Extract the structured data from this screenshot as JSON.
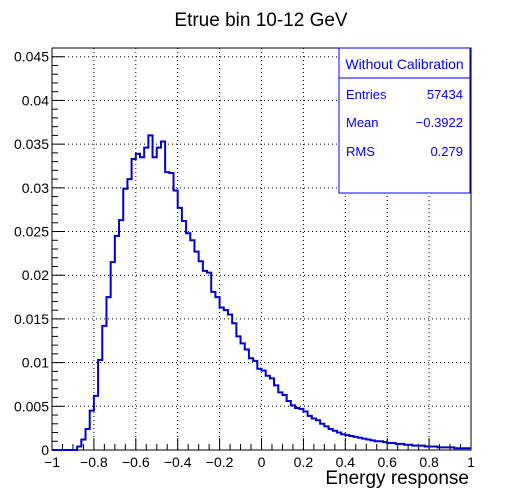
{
  "chart_data": {
    "type": "histogram",
    "title": "Etrue bin 10-12 GeV",
    "xlabel": "Energy response",
    "ylabel": "",
    "xlim": [
      -1,
      1
    ],
    "ylim": [
      0,
      0.046
    ],
    "x_ticks": [
      "−1",
      "−0.8",
      "−0.6",
      "−0.4",
      "−0.2",
      "0",
      "0.2",
      "0.4",
      "0.6",
      "0.8",
      "1"
    ],
    "x_tick_values": [
      -1,
      -0.8,
      -0.6,
      -0.4,
      -0.2,
      0,
      0.2,
      0.4,
      0.6,
      0.8,
      1
    ],
    "y_ticks": [
      "0",
      "0.005",
      "0.01",
      "0.015",
      "0.02",
      "0.025",
      "0.03",
      "0.035",
      "0.04",
      "0.045"
    ],
    "y_tick_values": [
      0,
      0.005,
      0.01,
      0.015,
      0.02,
      0.025,
      0.03,
      0.035,
      0.04,
      0.045
    ],
    "grid": true,
    "bin_start": -1,
    "bin_width": 0.02,
    "values": [
      0,
      0,
      0,
      0,
      0,
      0,
      0.0004,
      0.0012,
      0.0024,
      0.0045,
      0.0062,
      0.0103,
      0.0142,
      0.0175,
      0.0215,
      0.0245,
      0.0263,
      0.0299,
      0.031,
      0.0333,
      0.0339,
      0.0335,
      0.0346,
      0.036,
      0.0335,
      0.0346,
      0.0353,
      0.0318,
      0.0317,
      0.0297,
      0.0277,
      0.0262,
      0.0248,
      0.024,
      0.0227,
      0.0216,
      0.0205,
      0.0203,
      0.0181,
      0.0175,
      0.0163,
      0.016,
      0.0155,
      0.0145,
      0.013,
      0.0122,
      0.0115,
      0.0105,
      0.0102,
      0.0093,
      0.0091,
      0.0085,
      0.0082,
      0.0074,
      0.0066,
      0.0063,
      0.0056,
      0.0051,
      0.0048,
      0.0047,
      0.0044,
      0.0039,
      0.0036,
      0.0034,
      0.003,
      0.0027,
      0.0024,
      0.0022,
      0.002,
      0.0018,
      0.0017,
      0.0016,
      0.0015,
      0.0014,
      0.0013,
      0.0012,
      0.0011,
      0.001,
      0.001,
      0.0009,
      0.0008,
      0.0008,
      0.0007,
      0.0007,
      0.0006,
      0.0006,
      0.0005,
      0.0005,
      0.0005,
      0.0004,
      0.0004,
      0.0004,
      0.0003,
      0.0003,
      0.0003,
      0.0003,
      0.0002,
      0.0002,
      0.0002,
      0.0002
    ],
    "line_color": "#0000cc",
    "stats_box": {
      "title": "Without Calibration",
      "rows": [
        {
          "label": "Entries",
          "value": "57434"
        },
        {
          "label": "Mean",
          "value": "−0.3922"
        },
        {
          "label": "RMS",
          "value": "0.279"
        }
      ],
      "color": "#0000ff"
    }
  }
}
